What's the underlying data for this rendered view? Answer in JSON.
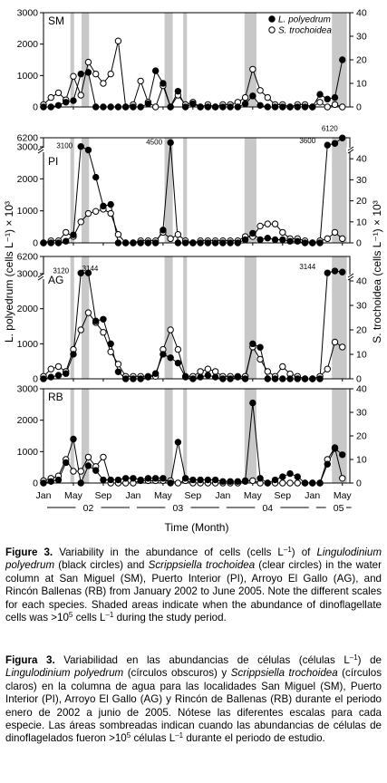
{
  "chart_data": {
    "type": "line",
    "x_axis": {
      "label": "Time (Month)",
      "tick_labels": [
        "Jan",
        "May",
        "Sep",
        "Jan",
        "May",
        "Sep",
        "Jan",
        "May",
        "Sep",
        "Jan",
        "May"
      ],
      "tick_months": [
        0,
        4,
        8,
        12,
        16,
        20,
        24,
        28,
        32,
        36,
        40
      ],
      "year_labels": [
        "02",
        "03",
        "04",
        "05"
      ],
      "year_start_months": [
        0,
        12,
        24,
        36
      ],
      "range_months": [
        0,
        41
      ]
    },
    "y_left_label": "L. polyedrum (cells L⁻¹) × 10³",
    "y_right_label": "S. trochoidea (cells L⁻¹) × 10³",
    "legend": {
      "placement": "top-right",
      "entries": [
        "L. polyedrum",
        "S. trochoidea"
      ]
    },
    "panels": [
      {
        "site": "SM",
        "left_ticks": [
          "0",
          "1000",
          "2000",
          "3000"
        ],
        "left_range": [
          0,
          3000
        ],
        "right_ticks": [
          "0",
          "10",
          "20",
          "30",
          "40"
        ],
        "right_range": [
          0,
          40
        ],
        "shaded_months": [
          [
            3.6,
            4.1
          ],
          [
            5.1,
            6.1
          ],
          [
            16.2,
            17.3
          ],
          [
            18.7,
            19.2
          ],
          [
            26.9,
            28.5
          ],
          [
            38.6,
            40.6
          ]
        ],
        "annotations": [],
        "series": [
          {
            "name": "L. polyedrum",
            "x": [
              0,
              1,
              2,
              3,
              4,
              5,
              6,
              7,
              8,
              9,
              10,
              11,
              12,
              13,
              14,
              15,
              16,
              17,
              18,
              19,
              20,
              21,
              22,
              23,
              24,
              25,
              26,
              27,
              28,
              29,
              30,
              31,
              32,
              33,
              34,
              35,
              36,
              37,
              38,
              39,
              40
            ],
            "y": [
              0,
              0,
              50,
              150,
              200,
              1050,
              1100,
              0,
              0,
              0,
              0,
              0,
              0,
              0,
              100,
              1150,
              750,
              0,
              500,
              0,
              100,
              0,
              0,
              0,
              0,
              0,
              0,
              100,
              350,
              50,
              0,
              0,
              0,
              0,
              0,
              0,
              0,
              400,
              250,
              300,
              1500
            ]
          },
          {
            "name": "S. trochoidea",
            "x": [
              0,
              1,
              2,
              3,
              4,
              5,
              6,
              7,
              8,
              9,
              10,
              11,
              12,
              13,
              14,
              15,
              16,
              17,
              18,
              19,
              20,
              21,
              22,
              23,
              24,
              25,
              26,
              27,
              28,
              29,
              30,
              31,
              32,
              33,
              34,
              35,
              36,
              37,
              38,
              39,
              40
            ],
            "y": [
              1,
              4,
              6,
              3,
              13,
              5,
              19,
              14,
              10,
              14,
              28,
              0,
              1,
              11,
              2,
              0,
              9,
              0,
              5,
              1,
              2,
              0,
              1,
              0,
              1,
              1,
              2,
              4,
              16,
              7,
              4,
              1,
              1,
              0,
              1,
              1,
              0,
              2,
              0,
              1,
              0
            ]
          }
        ]
      },
      {
        "site": "PI",
        "left_ticks": [
          "0",
          "1000",
          "2000",
          "3000",
          "6200"
        ],
        "left_range": [
          0,
          6200
        ],
        "right_ticks": [
          "0",
          "10",
          "20",
          "30",
          "40"
        ],
        "right_range": [
          0,
          50
        ],
        "shaded_months": [
          [
            3.6,
            4.1
          ],
          [
            5.1,
            6.1
          ],
          [
            16.2,
            17.3
          ],
          [
            18.7,
            19.2
          ],
          [
            26.9,
            28.5
          ],
          [
            38.6,
            40.6
          ]
        ],
        "annotations": [
          "3100",
          "4500",
          "6120",
          "3600"
        ],
        "series": [
          {
            "name": "L. polyedrum",
            "x": [
              0,
              1,
              2,
              3,
              4,
              5,
              6,
              7,
              8,
              9,
              10,
              11,
              12,
              13,
              14,
              15,
              16,
              17,
              18,
              19,
              20,
              21,
              22,
              23,
              24,
              25,
              26,
              27,
              28,
              29,
              30,
              31,
              32,
              33,
              34,
              35,
              36,
              37,
              38,
              39,
              40
            ],
            "y": [
              0,
              0,
              0,
              50,
              250,
              3100,
              2900,
              2050,
              1150,
              1200,
              0,
              0,
              0,
              0,
              0,
              0,
              400,
              4500,
              0,
              0,
              0,
              0,
              0,
              0,
              0,
              0,
              0,
              100,
              300,
              100,
              150,
              100,
              100,
              50,
              50,
              0,
              0,
              0,
              3600,
              4200,
              6120
            ]
          },
          {
            "name": "S. trochoidea",
            "x": [
              0,
              1,
              2,
              3,
              4,
              5,
              6,
              7,
              8,
              9,
              10,
              11,
              12,
              13,
              14,
              15,
              16,
              17,
              18,
              19,
              20,
              21,
              22,
              23,
              24,
              25,
              26,
              27,
              28,
              29,
              30,
              31,
              32,
              33,
              34,
              35,
              36,
              37,
              38,
              39,
              40
            ],
            "y": [
              0,
              1,
              1,
              5,
              3,
              10,
              14,
              15,
              16,
              14,
              4,
              0,
              0,
              1,
              1,
              1,
              5,
              2,
              4,
              1,
              0,
              1,
              1,
              1,
              1,
              1,
              1,
              3,
              3,
              8,
              9,
              9,
              5,
              2,
              2,
              1,
              0,
              1,
              2,
              5,
              2
            ]
          }
        ]
      },
      {
        "site": "AG",
        "left_ticks": [
          "0",
          "1000",
          "2000",
          "3000",
          "6200"
        ],
        "left_range": [
          0,
          6200
        ],
        "right_ticks": [
          "0",
          "10",
          "20",
          "30",
          "40"
        ],
        "right_range": [
          0,
          50
        ],
        "shaded_months": [
          [
            3.6,
            4.1
          ],
          [
            5.1,
            6.1
          ],
          [
            16.2,
            17.3
          ],
          [
            18.7,
            19.2
          ],
          [
            26.9,
            28.5
          ],
          [
            38.6,
            40.6
          ]
        ],
        "annotations": [
          "3120",
          "3144",
          "3144"
        ],
        "series": [
          {
            "name": "L. polyedrum",
            "x": [
              0,
              1,
              2,
              3,
              4,
              5,
              6,
              7,
              8,
              9,
              10,
              11,
              12,
              13,
              14,
              15,
              16,
              17,
              18,
              19,
              20,
              21,
              22,
              23,
              24,
              25,
              26,
              27,
              28,
              29,
              30,
              31,
              32,
              33,
              34,
              35,
              36,
              37,
              38,
              39,
              40
            ],
            "y": [
              0,
              50,
              100,
              150,
              700,
              3120,
              3144,
              1650,
              1700,
              1000,
              200,
              0,
              0,
              0,
              50,
              150,
              700,
              600,
              450,
              50,
              0,
              50,
              100,
              50,
              0,
              0,
              50,
              0,
              1000,
              900,
              0,
              0,
              0,
              0,
              0,
              0,
              0,
              0,
              3144,
              3500,
              3300
            ]
          },
          {
            "name": "S. trochoidea",
            "x": [
              0,
              1,
              2,
              3,
              4,
              5,
              6,
              7,
              8,
              9,
              10,
              11,
              12,
              13,
              14,
              15,
              16,
              17,
              18,
              19,
              20,
              21,
              22,
              23,
              24,
              25,
              26,
              27,
              28,
              29,
              30,
              31,
              32,
              33,
              34,
              35,
              36,
              37,
              38,
              39,
              40
            ],
            "y": [
              1,
              4,
              5,
              3,
              12,
              20,
              27,
              23,
              19,
              11,
              6,
              1,
              1,
              1,
              1,
              1,
              12,
              20,
              12,
              1,
              1,
              3,
              4,
              3,
              1,
              1,
              1,
              1,
              13,
              8,
              3,
              1,
              5,
              2,
              1,
              0,
              0,
              1,
              4,
              15,
              13
            ]
          }
        ]
      },
      {
        "site": "RB",
        "left_ticks": [
          "0",
          "1000",
          "2000",
          "3000"
        ],
        "left_range": [
          0,
          3000
        ],
        "right_ticks": [
          "0",
          "10",
          "20",
          "30",
          "40"
        ],
        "right_range": [
          0,
          40
        ],
        "shaded_months": [
          [
            3.6,
            4.1
          ],
          [
            5.1,
            6.1
          ],
          [
            16.2,
            17.3
          ],
          [
            18.7,
            19.2
          ],
          [
            26.9,
            28.5
          ],
          [
            38.6,
            40.6
          ]
        ],
        "annotations": [],
        "series": [
          {
            "name": "L. polyedrum",
            "x": [
              0,
              1,
              2,
              3,
              4,
              5,
              6,
              7,
              8,
              9,
              10,
              11,
              12,
              13,
              14,
              15,
              16,
              17,
              18,
              19,
              20,
              21,
              22,
              23,
              24,
              25,
              26,
              27,
              28,
              29,
              30,
              31,
              32,
              33,
              34,
              35,
              36,
              37,
              38,
              39,
              40
            ],
            "y": [
              0,
              50,
              100,
              650,
              1400,
              0,
              550,
              400,
              100,
              100,
              100,
              150,
              150,
              100,
              150,
              150,
              150,
              0,
              1300,
              150,
              100,
              100,
              100,
              100,
              50,
              50,
              50,
              50,
              2550,
              150,
              0,
              100,
              200,
              300,
              200,
              0,
              0,
              0,
              600,
              1100,
              900
            ]
          },
          {
            "name": "S. trochoidea",
            "x": [
              0,
              1,
              2,
              3,
              4,
              5,
              6,
              7,
              8,
              9,
              10,
              11,
              12,
              13,
              14,
              15,
              16,
              17,
              18,
              19,
              20,
              21,
              22,
              23,
              24,
              25,
              26,
              27,
              28,
              29,
              30,
              31,
              32,
              33,
              34,
              35,
              36,
              37,
              38,
              39,
              40
            ],
            "y": [
              1,
              2,
              3,
              10,
              5,
              5,
              11,
              7,
              11,
              0,
              0,
              0,
              0,
              1,
              1,
              1,
              1,
              1,
              0,
              1,
              0,
              0,
              0,
              0,
              0,
              0,
              0,
              1,
              1,
              0,
              0,
              0,
              0,
              0,
              0,
              0,
              0,
              0,
              10,
              15,
              2
            ]
          }
        ]
      }
    ]
  },
  "captions": {
    "en": {
      "label": "Figure 3.",
      "parts": [
        {
          "t": " Variability in the abundance of cells (cells L",
          "i": false
        },
        {
          "t": "–1",
          "i": false,
          "sup": true
        },
        {
          "t": ") of ",
          "i": false
        },
        {
          "t": "Lingulodinium polyedrum",
          "i": true
        },
        {
          "t": " (black circles) and ",
          "i": false
        },
        {
          "t": "Scrippsiella trochoidea",
          "i": true
        },
        {
          "t": " (clear circles) in the water column at San Miguel (SM), Puerto Interior (PI), Arroyo El Gallo (AG), and Rincón Ballenas (RB) from January 2002 to June 2005. Note the different scales for each species. Shaded areas indicate when the abundance of dinoflagellate cells was >10",
          "i": false
        },
        {
          "t": "5",
          "i": false,
          "sup": true
        },
        {
          "t": " cells L",
          "i": false
        },
        {
          "t": "–1",
          "i": false,
          "sup": true
        },
        {
          "t": " during the study period.",
          "i": false
        }
      ]
    },
    "es": {
      "label": "Figura 3.",
      "parts": [
        {
          "t": " Variabilidad en las abundancias de células (células L",
          "i": false
        },
        {
          "t": "–1",
          "i": false,
          "sup": true
        },
        {
          "t": ") de ",
          "i": false
        },
        {
          "t": "Lingulodinium polyedrum",
          "i": true
        },
        {
          "t": " (círculos obscuros) y ",
          "i": false
        },
        {
          "t": "Scrippsiella trochoidea",
          "i": true
        },
        {
          "t": " (círculos claros) en la columna de agua para las localidades San Miguel (SM), Puerto Interior (PI), Arroyo El Gallo (AG) y Rincón de Ballenas (RB) durante el periodo enero de 2002 a junio de 2005. Nótese las diferentes escalas para cada especie. Las áreas sombreadas indican cuando las abundancias de células de dinoflagelados fueron >10",
          "i": false
        },
        {
          "t": "5",
          "i": false,
          "sup": true
        },
        {
          "t": " células L",
          "i": false
        },
        {
          "t": "–1",
          "i": false,
          "sup": true
        },
        {
          "t": " durante el periodo de estudio.",
          "i": false
        }
      ]
    }
  }
}
